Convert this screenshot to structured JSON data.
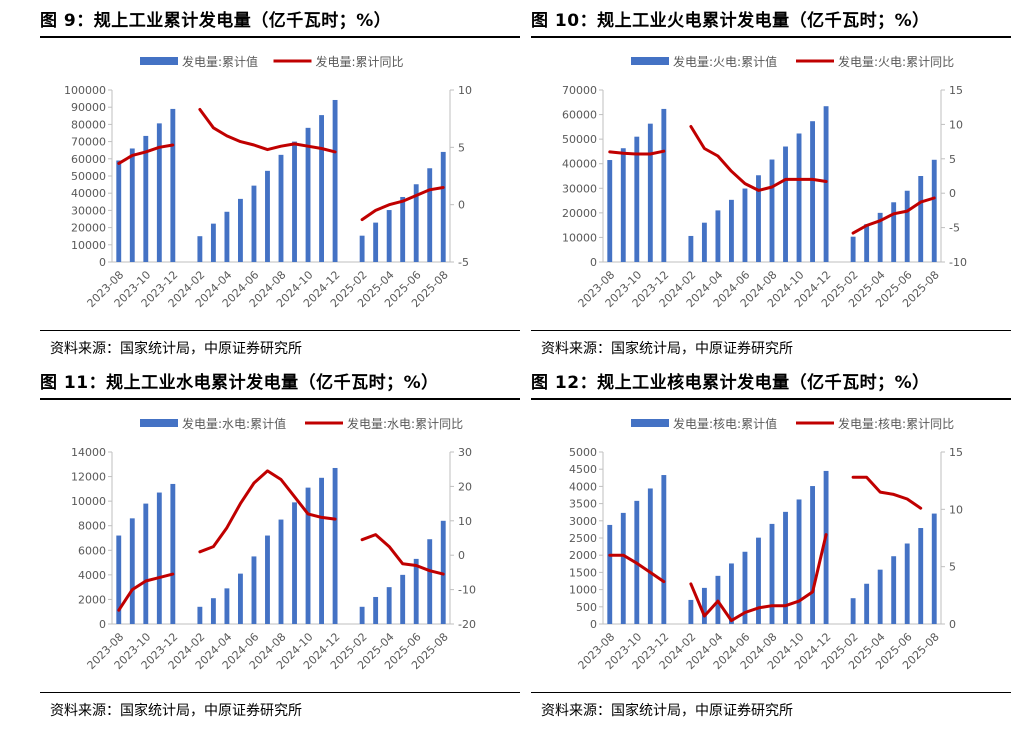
{
  "panels": [
    {
      "title": "图 9：规上工业累计发电量（亿千瓦时；%）",
      "source": "资料来源：国家统计局，中原证券研究所"
    },
    {
      "title": "图 10：规上工业火电累计发电量（亿千瓦时；%）",
      "source": "资料来源：国家统计局，中原证券研究所"
    },
    {
      "title": "图 11：规上工业水电累计发电量（亿千瓦时；%）",
      "source": "资料来源：国家统计局，中原证券研究所"
    },
    {
      "title": "图 12：规上工业核电累计发电量（亿千瓦时；%）",
      "source": "资料来源：国家统计局，中原证券研究所"
    }
  ],
  "colors": {
    "bar": "#4472C4",
    "line": "#C00000",
    "axis": "#BFBFBF",
    "text": "#595959"
  },
  "chart_data": [
    {
      "type": "bar",
      "categories": [
        "2023-08",
        "2023-09",
        "2023-10",
        "2023-11",
        "2023-12",
        "2024-01",
        "2024-02",
        "2024-03",
        "2024-04",
        "2024-05",
        "2024-06",
        "2024-07",
        "2024-08",
        "2024-09",
        "2024-10",
        "2024-11",
        "2024-12",
        "2025-01",
        "2025-02",
        "2025-03",
        "2025-04",
        "2025-05",
        "2025-06",
        "2025-07",
        "2025-08"
      ],
      "tick_labels": [
        "2023-08",
        "2023-10",
        "2023-12",
        "2024-02",
        "2024-04",
        "2024-06",
        "2024-08",
        "2024-10",
        "2024-12",
        "2025-02",
        "2025-04",
        "2025-06",
        "2025-08"
      ],
      "series": [
        {
          "name": "发电量:累计值",
          "kind": "bar",
          "axis": "left",
          "values": [
            59000,
            66000,
            73300,
            80600,
            89000,
            null,
            15000,
            22300,
            29200,
            36700,
            44400,
            53000,
            62300,
            70000,
            78000,
            85400,
            94200,
            null,
            15300,
            22900,
            30200,
            37800,
            45200,
            54500,
            64000
          ]
        },
        {
          "name": "发电量:累计同比",
          "kind": "line",
          "axis": "right",
          "values": [
            3.6,
            4.3,
            4.6,
            5.0,
            5.2,
            null,
            8.3,
            6.7,
            6.0,
            5.5,
            5.2,
            4.8,
            5.1,
            5.3,
            5.1,
            4.9,
            4.6,
            null,
            -1.3,
            -0.5,
            0.0,
            0.3,
            0.8,
            1.3,
            1.5
          ]
        }
      ],
      "y_left": {
        "ticks": [
          0,
          10000,
          20000,
          30000,
          40000,
          50000,
          60000,
          70000,
          80000,
          90000,
          100000
        ],
        "range": [
          0,
          100000
        ]
      },
      "y_right": {
        "ticks": [
          -5,
          0,
          5,
          10
        ],
        "range": [
          -5,
          10
        ]
      },
      "legend_position": "top-center"
    },
    {
      "type": "bar",
      "categories": [
        "2023-08",
        "2023-09",
        "2023-10",
        "2023-11",
        "2023-12",
        "2024-01",
        "2024-02",
        "2024-03",
        "2024-04",
        "2024-05",
        "2024-06",
        "2024-07",
        "2024-08",
        "2024-09",
        "2024-10",
        "2024-11",
        "2024-12",
        "2025-01",
        "2025-02",
        "2025-03",
        "2025-04",
        "2025-05",
        "2025-06",
        "2025-07",
        "2025-08"
      ],
      "tick_labels": [
        "2023-08",
        "2023-10",
        "2023-12",
        "2024-02",
        "2024-04",
        "2024-06",
        "2024-08",
        "2024-10",
        "2024-12",
        "2025-02",
        "2025-04",
        "2025-06",
        "2025-08"
      ],
      "series": [
        {
          "name": "发电量:火电:累计值",
          "kind": "bar",
          "axis": "left",
          "values": [
            41500,
            46300,
            51000,
            56300,
            62300,
            null,
            10600,
            16000,
            21000,
            25300,
            29900,
            35300,
            41700,
            47000,
            52300,
            57300,
            63400,
            null,
            10300,
            15400,
            20000,
            24300,
            29000,
            35000,
            41600
          ]
        },
        {
          "name": "发电量:火电:累计同比",
          "kind": "line",
          "axis": "right",
          "values": [
            6.0,
            5.8,
            5.7,
            5.7,
            6.1,
            null,
            9.7,
            6.5,
            5.4,
            3.2,
            1.4,
            0.4,
            0.9,
            2.0,
            2.0,
            2.0,
            1.7,
            null,
            -5.8,
            -4.7,
            -4.0,
            -3.0,
            -2.6,
            -1.3,
            -0.7
          ]
        }
      ],
      "y_left": {
        "ticks": [
          0,
          10000,
          20000,
          30000,
          40000,
          50000,
          60000,
          70000
        ],
        "range": [
          0,
          70000
        ]
      },
      "y_right": {
        "ticks": [
          -10,
          -5,
          0,
          5,
          10,
          15
        ],
        "range": [
          -10,
          15
        ]
      },
      "legend_position": "top-center"
    },
    {
      "type": "bar",
      "categories": [
        "2023-08",
        "2023-09",
        "2023-10",
        "2023-11",
        "2023-12",
        "2024-01",
        "2024-02",
        "2024-03",
        "2024-04",
        "2024-05",
        "2024-06",
        "2024-07",
        "2024-08",
        "2024-09",
        "2024-10",
        "2024-11",
        "2024-12",
        "2025-01",
        "2025-02",
        "2025-03",
        "2025-04",
        "2025-05",
        "2025-06",
        "2025-07",
        "2025-08"
      ],
      "tick_labels": [
        "2023-08",
        "2023-10",
        "2023-12",
        "2024-02",
        "2024-04",
        "2024-06",
        "2024-08",
        "2024-10",
        "2024-12",
        "2025-02",
        "2025-04",
        "2025-06",
        "2025-08"
      ],
      "series": [
        {
          "name": "发电量:水电:累计值",
          "kind": "bar",
          "axis": "left",
          "values": [
            7200,
            8600,
            9800,
            10700,
            11400,
            null,
            1400,
            2100,
            2900,
            4100,
            5500,
            7200,
            8500,
            9900,
            11100,
            11900,
            12700,
            null,
            1400,
            2200,
            3000,
            4000,
            5300,
            6900,
            8400
          ]
        },
        {
          "name": "发电量:水电:累计同比",
          "kind": "line",
          "axis": "right",
          "values": [
            -16,
            -10,
            -7.5,
            -6.5,
            -5.5,
            null,
            1,
            2.5,
            8,
            15,
            21,
            24.5,
            22,
            17,
            12,
            11,
            10.5,
            null,
            4.5,
            6,
            2.5,
            -2.5,
            -3,
            -4.5,
            -5.5
          ]
        }
      ],
      "y_left": {
        "ticks": [
          0,
          2000,
          4000,
          6000,
          8000,
          10000,
          12000,
          14000
        ],
        "range": [
          0,
          14000
        ]
      },
      "y_right": {
        "ticks": [
          -20,
          -10,
          0,
          10,
          20,
          30
        ],
        "range": [
          -20,
          30
        ]
      },
      "legend_position": "top-center"
    },
    {
      "type": "bar",
      "categories": [
        "2023-08",
        "2023-09",
        "2023-10",
        "2023-11",
        "2023-12",
        "2024-01",
        "2024-02",
        "2024-03",
        "2024-04",
        "2024-05",
        "2024-06",
        "2024-07",
        "2024-08",
        "2024-09",
        "2024-10",
        "2024-11",
        "2024-12",
        "2025-01",
        "2025-02",
        "2025-03",
        "2025-04",
        "2025-05",
        "2025-06",
        "2025-07",
        "2025-08"
      ],
      "tick_labels": [
        "2023-08",
        "2023-10",
        "2023-12",
        "2024-02",
        "2024-04",
        "2024-06",
        "2024-08",
        "2024-10",
        "2024-12",
        "2025-02",
        "2025-04",
        "2025-06",
        "2025-08"
      ],
      "series": [
        {
          "name": "发电量:核电:累计值",
          "kind": "bar",
          "axis": "left",
          "values": [
            2880,
            3230,
            3580,
            3940,
            4330,
            null,
            700,
            1050,
            1400,
            1760,
            2100,
            2510,
            2910,
            3260,
            3620,
            4010,
            4450,
            null,
            750,
            1170,
            1580,
            1970,
            2340,
            2790,
            3210
          ]
        },
        {
          "name": "发电量:核电:累计同比",
          "kind": "line",
          "axis": "right",
          "values": [
            6.0,
            6.0,
            5.3,
            4.5,
            3.7,
            null,
            3.5,
            0.7,
            2.0,
            0.3,
            1.0,
            1.4,
            1.6,
            1.6,
            2.0,
            2.8,
            7.8,
            null,
            12.8,
            12.8,
            11.5,
            11.3,
            10.9,
            10.1,
            null
          ]
        }
      ],
      "y_left": {
        "ticks": [
          0,
          500,
          1000,
          1500,
          2000,
          2500,
          3000,
          3500,
          4000,
          4500,
          5000
        ],
        "range": [
          0,
          5000
        ]
      },
      "y_right": {
        "ticks": [
          0,
          5,
          10,
          15
        ],
        "range": [
          0,
          15
        ]
      },
      "legend_position": "top-center"
    }
  ]
}
